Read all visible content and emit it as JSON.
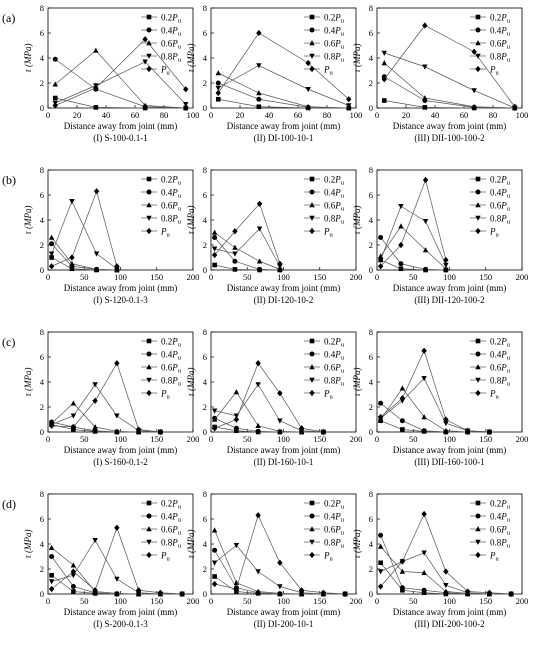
{
  "rows": [
    {
      "label": "(a)",
      "panels": [
        0,
        1,
        2
      ]
    },
    {
      "label": "(b)",
      "panels": [
        3,
        4,
        5
      ]
    },
    {
      "label": "(c)",
      "panels": [
        6,
        7,
        8
      ]
    },
    {
      "label": "(d)",
      "panels": [
        9,
        10,
        11
      ]
    }
  ],
  "legend_labels": [
    [
      "0.2",
      "P",
      "u"
    ],
    [
      "0.4",
      "P",
      "u"
    ],
    [
      "0.6",
      "P",
      "u"
    ],
    [
      "0.8",
      "P",
      "u"
    ],
    [
      "",
      "P",
      "u"
    ]
  ],
  "chart_data": [
    {
      "type": "line",
      "subtitle": "(I) S-100-0.1-1",
      "xlabel": "Distance away from joint (mm)",
      "ylabel": "τ (MPa)",
      "xlim": [
        0,
        100
      ],
      "ylim": [
        0,
        8
      ],
      "xticks": [
        0,
        20,
        40,
        60,
        80,
        100
      ],
      "yticks": [
        0,
        2,
        4,
        6,
        8
      ],
      "x": [
        5,
        33,
        67,
        95
      ],
      "series": [
        {
          "name": "0.2Pu",
          "marker": "square",
          "values": [
            0.8,
            0.05,
            0,
            0
          ]
        },
        {
          "name": "0.4Pu",
          "marker": "circle",
          "values": [
            3.9,
            1.5,
            0.1,
            0
          ]
        },
        {
          "name": "0.6Pu",
          "marker": "triangle-up",
          "values": [
            1.9,
            4.6,
            0.2,
            0
          ]
        },
        {
          "name": "0.8Pu",
          "marker": "triangle-down",
          "values": [
            0.4,
            1.8,
            3.7,
            0.3
          ]
        },
        {
          "name": "Pu",
          "marker": "diamond",
          "values": [
            0.2,
            1.6,
            5.5,
            1.5
          ]
        }
      ]
    },
    {
      "type": "line",
      "subtitle": "(II) DI-100-10-1",
      "xlabel": "Distance away from joint (mm)",
      "ylabel": "τ (MPa)",
      "xlim": [
        0,
        100
      ],
      "ylim": [
        0,
        8
      ],
      "xticks": [
        0,
        20,
        40,
        60,
        80,
        100
      ],
      "yticks": [
        0,
        2,
        4,
        6,
        8
      ],
      "x": [
        5,
        33,
        67,
        95
      ],
      "series": [
        {
          "name": "0.2Pu",
          "marker": "square",
          "values": [
            0.7,
            0.1,
            0,
            0
          ]
        },
        {
          "name": "0.4Pu",
          "marker": "circle",
          "values": [
            2.0,
            0.7,
            0.05,
            0
          ]
        },
        {
          "name": "0.6Pu",
          "marker": "triangle-up",
          "values": [
            2.8,
            1.2,
            0.1,
            0
          ]
        },
        {
          "name": "0.8Pu",
          "marker": "triangle-down",
          "values": [
            1.6,
            3.4,
            1.5,
            0.2
          ]
        },
        {
          "name": "Pu",
          "marker": "diamond",
          "values": [
            1.2,
            6.0,
            3.6,
            0.7
          ]
        }
      ]
    },
    {
      "type": "line",
      "subtitle": "(III) DII-100-100-2",
      "xlabel": "Distance away from joint (mm)",
      "ylabel": "τ (MPa)",
      "xlim": [
        0,
        100
      ],
      "ylim": [
        0,
        8
      ],
      "xticks": [
        0,
        20,
        40,
        60,
        80,
        100
      ],
      "yticks": [
        0,
        2,
        4,
        6,
        8
      ],
      "x": [
        5,
        33,
        67,
        95
      ],
      "series": [
        {
          "name": "0.2Pu",
          "marker": "square",
          "values": [
            0.6,
            0.05,
            0,
            0
          ]
        },
        {
          "name": "0.4Pu",
          "marker": "circle",
          "values": [
            2.5,
            0.6,
            0.05,
            0
          ]
        },
        {
          "name": "0.6Pu",
          "marker": "triangle-up",
          "values": [
            3.6,
            0.8,
            0.1,
            0
          ]
        },
        {
          "name": "0.8Pu",
          "marker": "triangle-down",
          "values": [
            4.4,
            3.3,
            1.4,
            0
          ]
        },
        {
          "name": "Pu",
          "marker": "diamond",
          "values": [
            2.3,
            6.6,
            4.5,
            0.1
          ]
        }
      ]
    },
    {
      "type": "line",
      "subtitle": "(I)  S-120-0.1-3",
      "xlabel": "Distance away from joint (mm)",
      "ylabel": "τ (MPa)",
      "xlim": [
        0,
        200
      ],
      "ylim": [
        0,
        8
      ],
      "xticks": [
        0,
        50,
        100,
        150,
        200
      ],
      "yticks": [
        0,
        2,
        4,
        6,
        8
      ],
      "x": [
        5,
        33,
        67,
        95
      ],
      "series": [
        {
          "name": "0.2Pu",
          "marker": "square",
          "values": [
            1.0,
            0.1,
            0,
            0
          ]
        },
        {
          "name": "0.4Pu",
          "marker": "circle",
          "values": [
            2.1,
            0.3,
            0.05,
            0
          ]
        },
        {
          "name": "0.6Pu",
          "marker": "triangle-up",
          "values": [
            2.6,
            0.5,
            0.05,
            0
          ]
        },
        {
          "name": "0.8Pu",
          "marker": "triangle-down",
          "values": [
            1.3,
            5.5,
            1.3,
            0.1
          ]
        },
        {
          "name": "Pu",
          "marker": "diamond",
          "values": [
            0.3,
            1.0,
            6.3,
            0.3
          ]
        }
      ]
    },
    {
      "type": "line",
      "subtitle": "(II) DI-120-10-2",
      "xlabel": "Distance away from joint (mm)",
      "ylabel": "τ (MPa)",
      "xlim": [
        0,
        200
      ],
      "ylim": [
        0,
        8
      ],
      "xticks": [
        0,
        50,
        100,
        150,
        200
      ],
      "yticks": [
        0,
        2,
        4,
        6,
        8
      ],
      "x": [
        5,
        33,
        67,
        95
      ],
      "series": [
        {
          "name": "0.2Pu",
          "marker": "square",
          "values": [
            0.4,
            0.05,
            0,
            0
          ]
        },
        {
          "name": "0.4Pu",
          "marker": "circle",
          "values": [
            2.6,
            0.7,
            0.05,
            0
          ]
        },
        {
          "name": "0.6Pu",
          "marker": "triangle-up",
          "values": [
            3.0,
            1.8,
            0.7,
            0.05
          ]
        },
        {
          "name": "0.8Pu",
          "marker": "triangle-down",
          "values": [
            1.7,
            1.3,
            3.3,
            0.3
          ]
        },
        {
          "name": "Pu",
          "marker": "diamond",
          "values": [
            1.2,
            3.1,
            5.3,
            0.5
          ]
        }
      ]
    },
    {
      "type": "line",
      "subtitle": "(III) DII-120-100-2",
      "xlabel": "Distance away from joint (mm)",
      "ylabel": "τ (MPa)",
      "xlim": [
        0,
        200
      ],
      "ylim": [
        0,
        8
      ],
      "xticks": [
        0,
        50,
        100,
        150,
        200
      ],
      "yticks": [
        0,
        2,
        4,
        6,
        8
      ],
      "x": [
        5,
        33,
        67,
        95
      ],
      "series": [
        {
          "name": "0.2Pu",
          "marker": "square",
          "values": [
            0.8,
            0.1,
            0,
            0
          ]
        },
        {
          "name": "0.4Pu",
          "marker": "circle",
          "values": [
            2.6,
            0.5,
            0.05,
            0
          ]
        },
        {
          "name": "0.6Pu",
          "marker": "triangle-up",
          "values": [
            1.1,
            3.5,
            1.6,
            0.1
          ]
        },
        {
          "name": "0.8Pu",
          "marker": "triangle-down",
          "values": [
            0.8,
            5.1,
            3.9,
            0.4
          ]
        },
        {
          "name": "Pu",
          "marker": "diamond",
          "values": [
            0.3,
            2.0,
            7.2,
            0.8
          ]
        }
      ]
    },
    {
      "type": "line",
      "subtitle": "(I)  S-160-0.1-2",
      "xlabel": "Distance away from joint (mm)",
      "ylabel": "τ (MPa)",
      "xlim": [
        0,
        200
      ],
      "ylim": [
        0,
        8
      ],
      "xticks": [
        0,
        50,
        100,
        150,
        200
      ],
      "yticks": [
        0,
        2,
        4,
        6,
        8
      ],
      "x": [
        5,
        35,
        65,
        95,
        125,
        155
      ],
      "series": [
        {
          "name": "0.2Pu",
          "marker": "square",
          "values": [
            0.6,
            0.2,
            0.05,
            0,
            0,
            0
          ]
        },
        {
          "name": "0.4Pu",
          "marker": "circle",
          "values": [
            0.8,
            0.4,
            0.1,
            0,
            0,
            0
          ]
        },
        {
          "name": "0.6Pu",
          "marker": "triangle-up",
          "values": [
            0.7,
            2.3,
            0.4,
            0.05,
            0,
            0
          ]
        },
        {
          "name": "0.8Pu",
          "marker": "triangle-down",
          "values": [
            0.6,
            1.3,
            3.8,
            1.3,
            0.1,
            0
          ]
        },
        {
          "name": "Pu",
          "marker": "diamond",
          "values": [
            0.5,
            0.4,
            2.5,
            5.5,
            0.2,
            0
          ]
        }
      ]
    },
    {
      "type": "line",
      "subtitle": "(II) DI-160-10-1",
      "xlabel": "Distance away from joint (mm)",
      "ylabel": "τ (MPa)",
      "xlim": [
        0,
        200
      ],
      "ylim": [
        0,
        8
      ],
      "xticks": [
        0,
        50,
        100,
        150,
        200
      ],
      "yticks": [
        0,
        2,
        4,
        6,
        8
      ],
      "x": [
        5,
        35,
        65,
        95,
        125,
        155
      ],
      "series": [
        {
          "name": "0.2Pu",
          "marker": "square",
          "values": [
            0.4,
            0.1,
            0,
            0,
            0,
            0
          ]
        },
        {
          "name": "0.4Pu",
          "marker": "circle",
          "values": [
            1.1,
            0.3,
            0.05,
            0,
            0,
            0
          ]
        },
        {
          "name": "0.6Pu",
          "marker": "triangle-up",
          "values": [
            1.0,
            3.2,
            0.5,
            0.05,
            0,
            0
          ]
        },
        {
          "name": "0.8Pu",
          "marker": "triangle-down",
          "values": [
            1.7,
            1.3,
            3.8,
            0.9,
            0.1,
            0
          ]
        },
        {
          "name": "Pu",
          "marker": "diamond",
          "values": [
            0.3,
            1.0,
            5.5,
            3.1,
            0.3,
            0
          ]
        }
      ]
    },
    {
      "type": "line",
      "subtitle": "(III) DII-160-100-1",
      "xlabel": "Distance away from joint (mm)",
      "ylabel": "τ (MPa)",
      "xlim": [
        0,
        200
      ],
      "ylim": [
        0,
        8
      ],
      "xticks": [
        0,
        50,
        100,
        150,
        200
      ],
      "yticks": [
        0,
        2,
        4,
        6,
        8
      ],
      "x": [
        5,
        35,
        65,
        95,
        125,
        155
      ],
      "series": [
        {
          "name": "0.2Pu",
          "marker": "square",
          "values": [
            0.9,
            0.2,
            0.05,
            0,
            0,
            0
          ]
        },
        {
          "name": "0.4Pu",
          "marker": "circle",
          "values": [
            2.3,
            0.9,
            0.1,
            0,
            0,
            0
          ]
        },
        {
          "name": "0.6Pu",
          "marker": "triangle-up",
          "values": [
            1.0,
            3.5,
            1.2,
            0.1,
            0,
            0
          ]
        },
        {
          "name": "0.8Pu",
          "marker": "triangle-down",
          "values": [
            1.1,
            2.5,
            4.3,
            0.7,
            0.1,
            0
          ]
        },
        {
          "name": "Pu",
          "marker": "diamond",
          "values": [
            1.2,
            2.7,
            6.5,
            1.0,
            0.1,
            0
          ]
        }
      ]
    },
    {
      "type": "line",
      "subtitle": "(I)  S-200-0.1-3",
      "xlabel": "Distance away from joint (mm)",
      "ylabel": "τ (MPa)",
      "xlim": [
        0,
        200
      ],
      "ylim": [
        0,
        8
      ],
      "xticks": [
        0,
        50,
        100,
        150,
        200
      ],
      "yticks": [
        0,
        2,
        4,
        6,
        8
      ],
      "x": [
        5,
        35,
        65,
        95,
        125,
        155,
        185
      ],
      "series": [
        {
          "name": "0.2Pu",
          "marker": "square",
          "values": [
            1.5,
            0.2,
            0.05,
            0,
            0,
            0,
            0
          ]
        },
        {
          "name": "0.4Pu",
          "marker": "circle",
          "values": [
            3.0,
            0.6,
            0.1,
            0,
            0,
            0,
            0
          ]
        },
        {
          "name": "0.6Pu",
          "marker": "triangle-up",
          "values": [
            3.7,
            2.3,
            0.2,
            0.05,
            0,
            0,
            0
          ]
        },
        {
          "name": "0.8Pu",
          "marker": "triangle-down",
          "values": [
            1.0,
            1.5,
            4.3,
            1.2,
            0.1,
            0,
            0
          ]
        },
        {
          "name": "Pu",
          "marker": "diamond",
          "values": [
            0.4,
            1.8,
            0.3,
            5.3,
            0.3,
            0.1,
            0
          ]
        }
      ]
    },
    {
      "type": "line",
      "subtitle": "(II) DI-200-10-1",
      "xlabel": "Distance away from joint (mm)",
      "ylabel": "τ (MPa)",
      "xlim": [
        0,
        200
      ],
      "ylim": [
        0,
        8
      ],
      "xticks": [
        0,
        50,
        100,
        150,
        200
      ],
      "yticks": [
        0,
        2,
        4,
        6,
        8
      ],
      "x": [
        5,
        35,
        65,
        95,
        125,
        155,
        185
      ],
      "series": [
        {
          "name": "0.2Pu",
          "marker": "square",
          "values": [
            1.4,
            0.2,
            0.05,
            0,
            0,
            0,
            0
          ]
        },
        {
          "name": "0.4Pu",
          "marker": "circle",
          "values": [
            3.5,
            0.5,
            0.1,
            0,
            0,
            0,
            0
          ]
        },
        {
          "name": "0.6Pu",
          "marker": "triangle-up",
          "values": [
            5.1,
            0.9,
            0.2,
            0.05,
            0,
            0,
            0
          ]
        },
        {
          "name": "0.8Pu",
          "marker": "triangle-down",
          "values": [
            2.5,
            3.9,
            1.8,
            0.6,
            0.1,
            0,
            0
          ]
        },
        {
          "name": "Pu",
          "marker": "diamond",
          "values": [
            0.8,
            0.4,
            6.3,
            2.5,
            0.3,
            0.1,
            0
          ]
        }
      ]
    },
    {
      "type": "line",
      "subtitle": "(III) DII-200-100-2",
      "xlabel": "Distance away from joint (mm)",
      "ylabel": "τ (MPa)",
      "xlim": [
        0,
        200
      ],
      "ylim": [
        0,
        8
      ],
      "xticks": [
        0,
        50,
        100,
        150,
        200
      ],
      "yticks": [
        0,
        2,
        4,
        6,
        8
      ],
      "x": [
        5,
        35,
        65,
        95,
        125,
        155,
        185
      ],
      "series": [
        {
          "name": "0.2Pu",
          "marker": "square",
          "values": [
            2.5,
            0.3,
            0.1,
            0,
            0,
            0,
            0
          ]
        },
        {
          "name": "0.4Pu",
          "marker": "circle",
          "values": [
            4.7,
            0.5,
            0.3,
            0.1,
            0,
            0,
            0
          ]
        },
        {
          "name": "0.6Pu",
          "marker": "triangle-up",
          "values": [
            3.8,
            1.8,
            1.7,
            0.2,
            0.05,
            0,
            0
          ]
        },
        {
          "name": "0.8Pu",
          "marker": "triangle-down",
          "values": [
            1.8,
            2.6,
            3.3,
            0.7,
            0.1,
            0,
            0
          ]
        },
        {
          "name": "Pu",
          "marker": "diamond",
          "values": [
            0.6,
            2.6,
            6.4,
            1.8,
            0.2,
            0.1,
            0
          ]
        }
      ]
    }
  ]
}
